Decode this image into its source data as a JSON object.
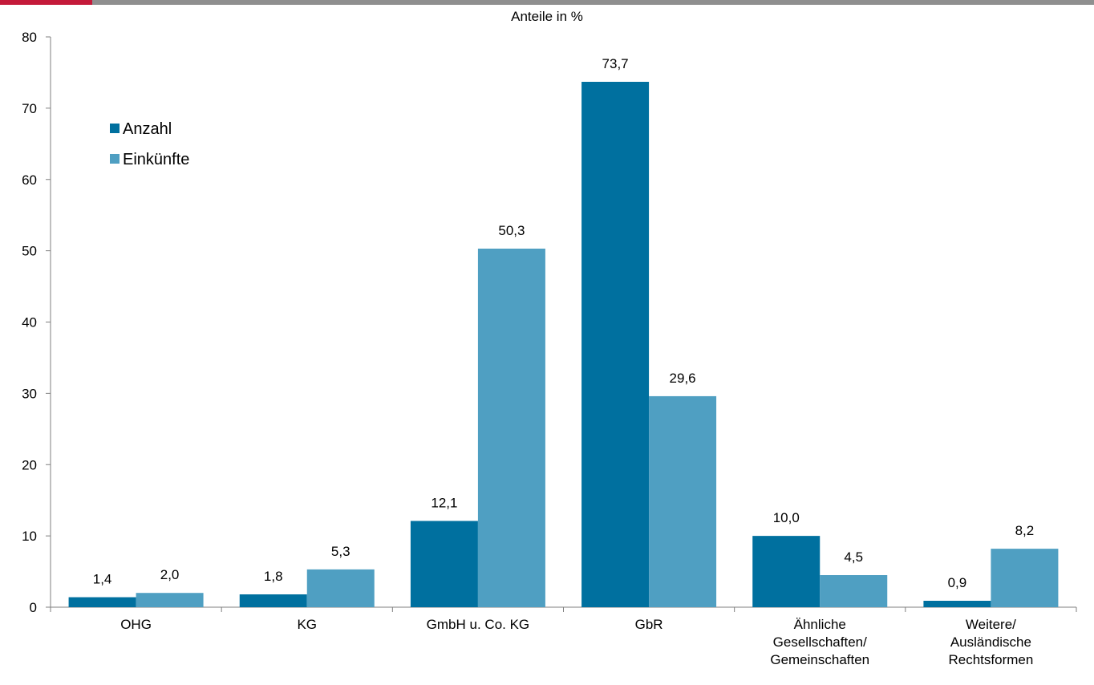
{
  "chart_data": {
    "type": "bar",
    "title": "Anteile in %",
    "xlabel": "",
    "ylabel": "",
    "ylim": [
      0,
      80
    ],
    "yticks": [
      "0",
      "10",
      "20",
      "30",
      "40",
      "50",
      "60",
      "70",
      "80"
    ],
    "legend_position": "top-left",
    "grid": false,
    "categories": [
      [
        "OHG"
      ],
      [
        "KG"
      ],
      [
        "GmbH u. Co. KG"
      ],
      [
        "GbR"
      ],
      [
        "Ähnliche",
        "Gesellschaften/",
        "Gemeinschaften"
      ],
      [
        "Weitere/",
        "Ausländische",
        "Rechtsformen"
      ]
    ],
    "series": [
      {
        "name": "Anzahl",
        "color": "#00709f",
        "values": [
          1.4,
          1.8,
          12.1,
          73.7,
          10.0,
          0.9
        ],
        "labels": [
          "1,4",
          "1,8",
          "12,1",
          "73,7",
          "10,0",
          "0,9"
        ]
      },
      {
        "name": "Einkünfte",
        "color": "#4f9fc2",
        "values": [
          2.0,
          5.3,
          50.3,
          29.6,
          4.5,
          8.2
        ],
        "labels": [
          "2,0",
          "5,3",
          "50,3",
          "29,6",
          "4,5",
          "8,2"
        ]
      }
    ]
  },
  "colors": {
    "top_bar": "#8f8f8f",
    "top_bar_accent": "#c41a3a",
    "axis": "#7f7f7f"
  }
}
